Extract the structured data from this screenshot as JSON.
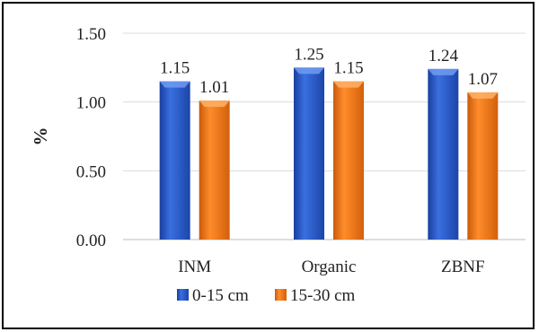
{
  "chart_data": {
    "type": "bar",
    "title": "",
    "xlabel": "",
    "ylabel": "%",
    "ylim": [
      0,
      1.5
    ],
    "yticks": [
      "0.00",
      "0.50",
      "1.00",
      "1.50"
    ],
    "categories": [
      "INM",
      "Organic",
      "ZBNF"
    ],
    "series": [
      {
        "name": "0-15 cm",
        "values": [
          1.15,
          1.25,
          1.24
        ],
        "labels": [
          "1.15",
          "1.25",
          "1.24"
        ],
        "color": "#2f5ecb"
      },
      {
        "name": "15-30 cm",
        "values": [
          1.01,
          1.15,
          1.07
        ],
        "labels": [
          "1.01",
          "1.15",
          "1.07"
        ],
        "color": "#f07a1a"
      }
    ],
    "grid": true,
    "legend": "bottom"
  }
}
